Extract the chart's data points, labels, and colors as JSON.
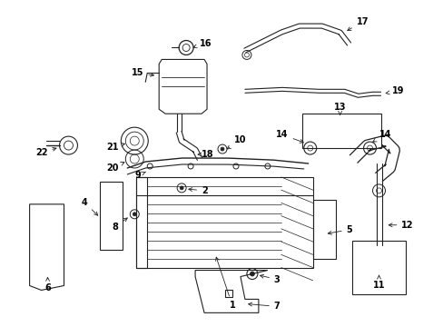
{
  "bg_color": "#ffffff",
  "line_color": "#222222",
  "text_color": "#000000",
  "fig_width": 4.89,
  "fig_height": 3.6,
  "dpi": 100
}
